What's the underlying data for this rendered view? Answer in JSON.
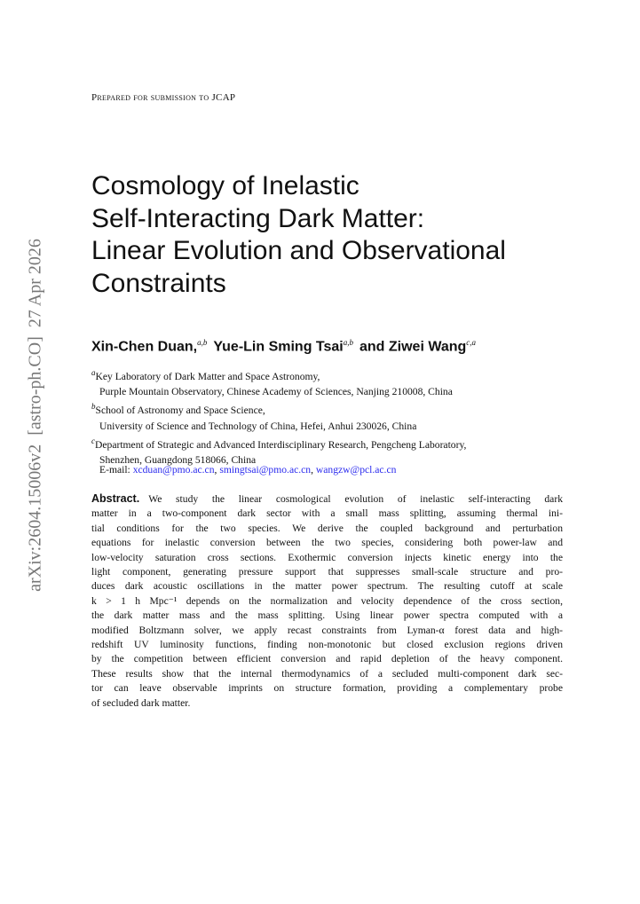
{
  "sidebar": "arXiv:2604.15006v2  [astro-ph.CO]  27 Apr 2026",
  "header": "Prepared for submission to JCAP",
  "title": [
    "Cosmology of Inelastic",
    "Self-Interacting Dark Matter:",
    "Linear Evolution and Observational",
    "Constraints"
  ],
  "authors": [
    {
      "name": "Xin-Chen Duan,",
      "sup": "a,b"
    },
    {
      "name": "Yue-Lin Sming Tsai",
      "sup": "a,b"
    },
    {
      "name": "and Ziwei Wang",
      "sup": "c,a"
    }
  ],
  "affiliations": [
    {
      "label": "a",
      "lines": [
        "Key Laboratory of Dark Matter and Space Astronomy,",
        "Purple Mountain Observatory, Chinese Academy of Sciences, Nanjing 210008, China"
      ]
    },
    {
      "label": "b",
      "lines": [
        "School of Astronomy and Space Science,",
        "University of Science and Technology of China, Hefei, Anhui 230026, China"
      ]
    },
    {
      "label": "c",
      "lines": [
        "Department of Strategic and Advanced Interdisciplinary Research, Pengcheng Laboratory,",
        "Shenzhen, Guangdong 518066, China"
      ]
    }
  ],
  "email": {
    "label": "E-mail:",
    "addresses": [
      "xcduan@pmo.ac.cn",
      "smingtsai@pmo.ac.cn",
      "wangzw@pcl.ac.cn"
    ],
    "separator": ","
  },
  "abstract": {
    "label": "Abstract.",
    "lines": [
      "We study the linear cosmological evolution of inelastic self-interacting dark",
      "matter in a two-component dark sector with a small mass splitting, assuming thermal ini-",
      "tial conditions for the two species. We derive the coupled background and perturbation",
      "equations for inelastic conversion between the two species, considering both power-law and",
      "low-velocity saturation cross sections. Exothermic conversion injects kinetic energy into the",
      "light component, generating pressure support that suppresses small-scale structure and pro-",
      "duces dark acoustic oscillations in the matter power spectrum. The resulting cutoff at scale",
      "k > 1 h Mpc⁻¹ depends on the normalization and velocity dependence of the cross section,",
      "the dark matter mass and the mass splitting. Using linear power spectra computed with a",
      "modified Boltzmann solver, we apply recast constraints from Lyman-α forest data and high-",
      "redshift UV luminosity functions, finding non-monotonic but closed exclusion regions driven",
      "by the competition between efficient conversion and rapid depletion of the heavy component.",
      "These results show that the internal thermodynamics of a secluded multi-component dark sec-",
      "tor can leave observable imprints on structure formation, providing a complementary probe",
      "of secluded dark matter."
    ]
  }
}
